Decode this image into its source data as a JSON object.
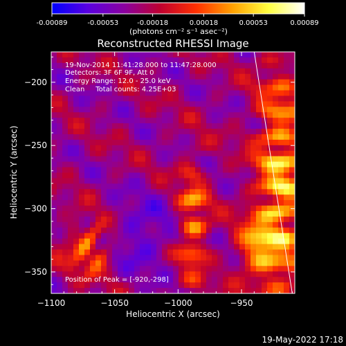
{
  "colorbar": {
    "tick_labels": [
      "-0.00089",
      "-0.00053",
      "-0.00018",
      "0.00018",
      "0.00053",
      "0.00089"
    ],
    "tick_values": [
      -0.00089,
      -0.00053,
      -0.00018,
      0.00018,
      0.00053,
      0.00089
    ],
    "range": [
      -0.00089,
      0.00089
    ],
    "units_label": "(photons cm⁻² s⁻¹ asec⁻²)",
    "colors": [
      "#0000ff",
      "#5a00e0",
      "#8a00a0",
      "#bf0030",
      "#ff3000",
      "#ffa000",
      "#ffff40",
      "#ffffff"
    ]
  },
  "chart_data": {
    "type": "heatmap",
    "title": "Reconstructed RHESSI Image",
    "xlabel": "Heliocentric X (arcsec)",
    "ylabel": "Heliocentric Y (arcsec)",
    "xlim": [
      -1100,
      -908
    ],
    "ylim": [
      -367,
      -176
    ],
    "x_ticks": [
      -1100,
      -1050,
      -1000,
      -950
    ],
    "x_tick_labels": [
      "−1100",
      "−1050",
      "−1000",
      "−950"
    ],
    "y_ticks": [
      -200,
      -250,
      -300,
      -350
    ],
    "y_tick_labels": [
      "−200",
      "−250",
      "−300",
      "−350"
    ],
    "limb_line": {
      "x": [
        -940,
        -910
      ],
      "y": [
        -176,
        -367
      ]
    },
    "annotations": [
      "19-Nov-2014 11:41:28.000 to 11:47:28.000",
      "Detectors: 3F 6F 9F, Att 0",
      "Energy Range: 12.0 - 25.0 keV",
      "Clean     Total counts: 4.25E+03"
    ],
    "peak_label": "Position of Peak = [-920,-298]",
    "peak_position": [
      -920,
      -298
    ]
  },
  "footer": {
    "timestamp": "19-May-2022 17:18"
  }
}
